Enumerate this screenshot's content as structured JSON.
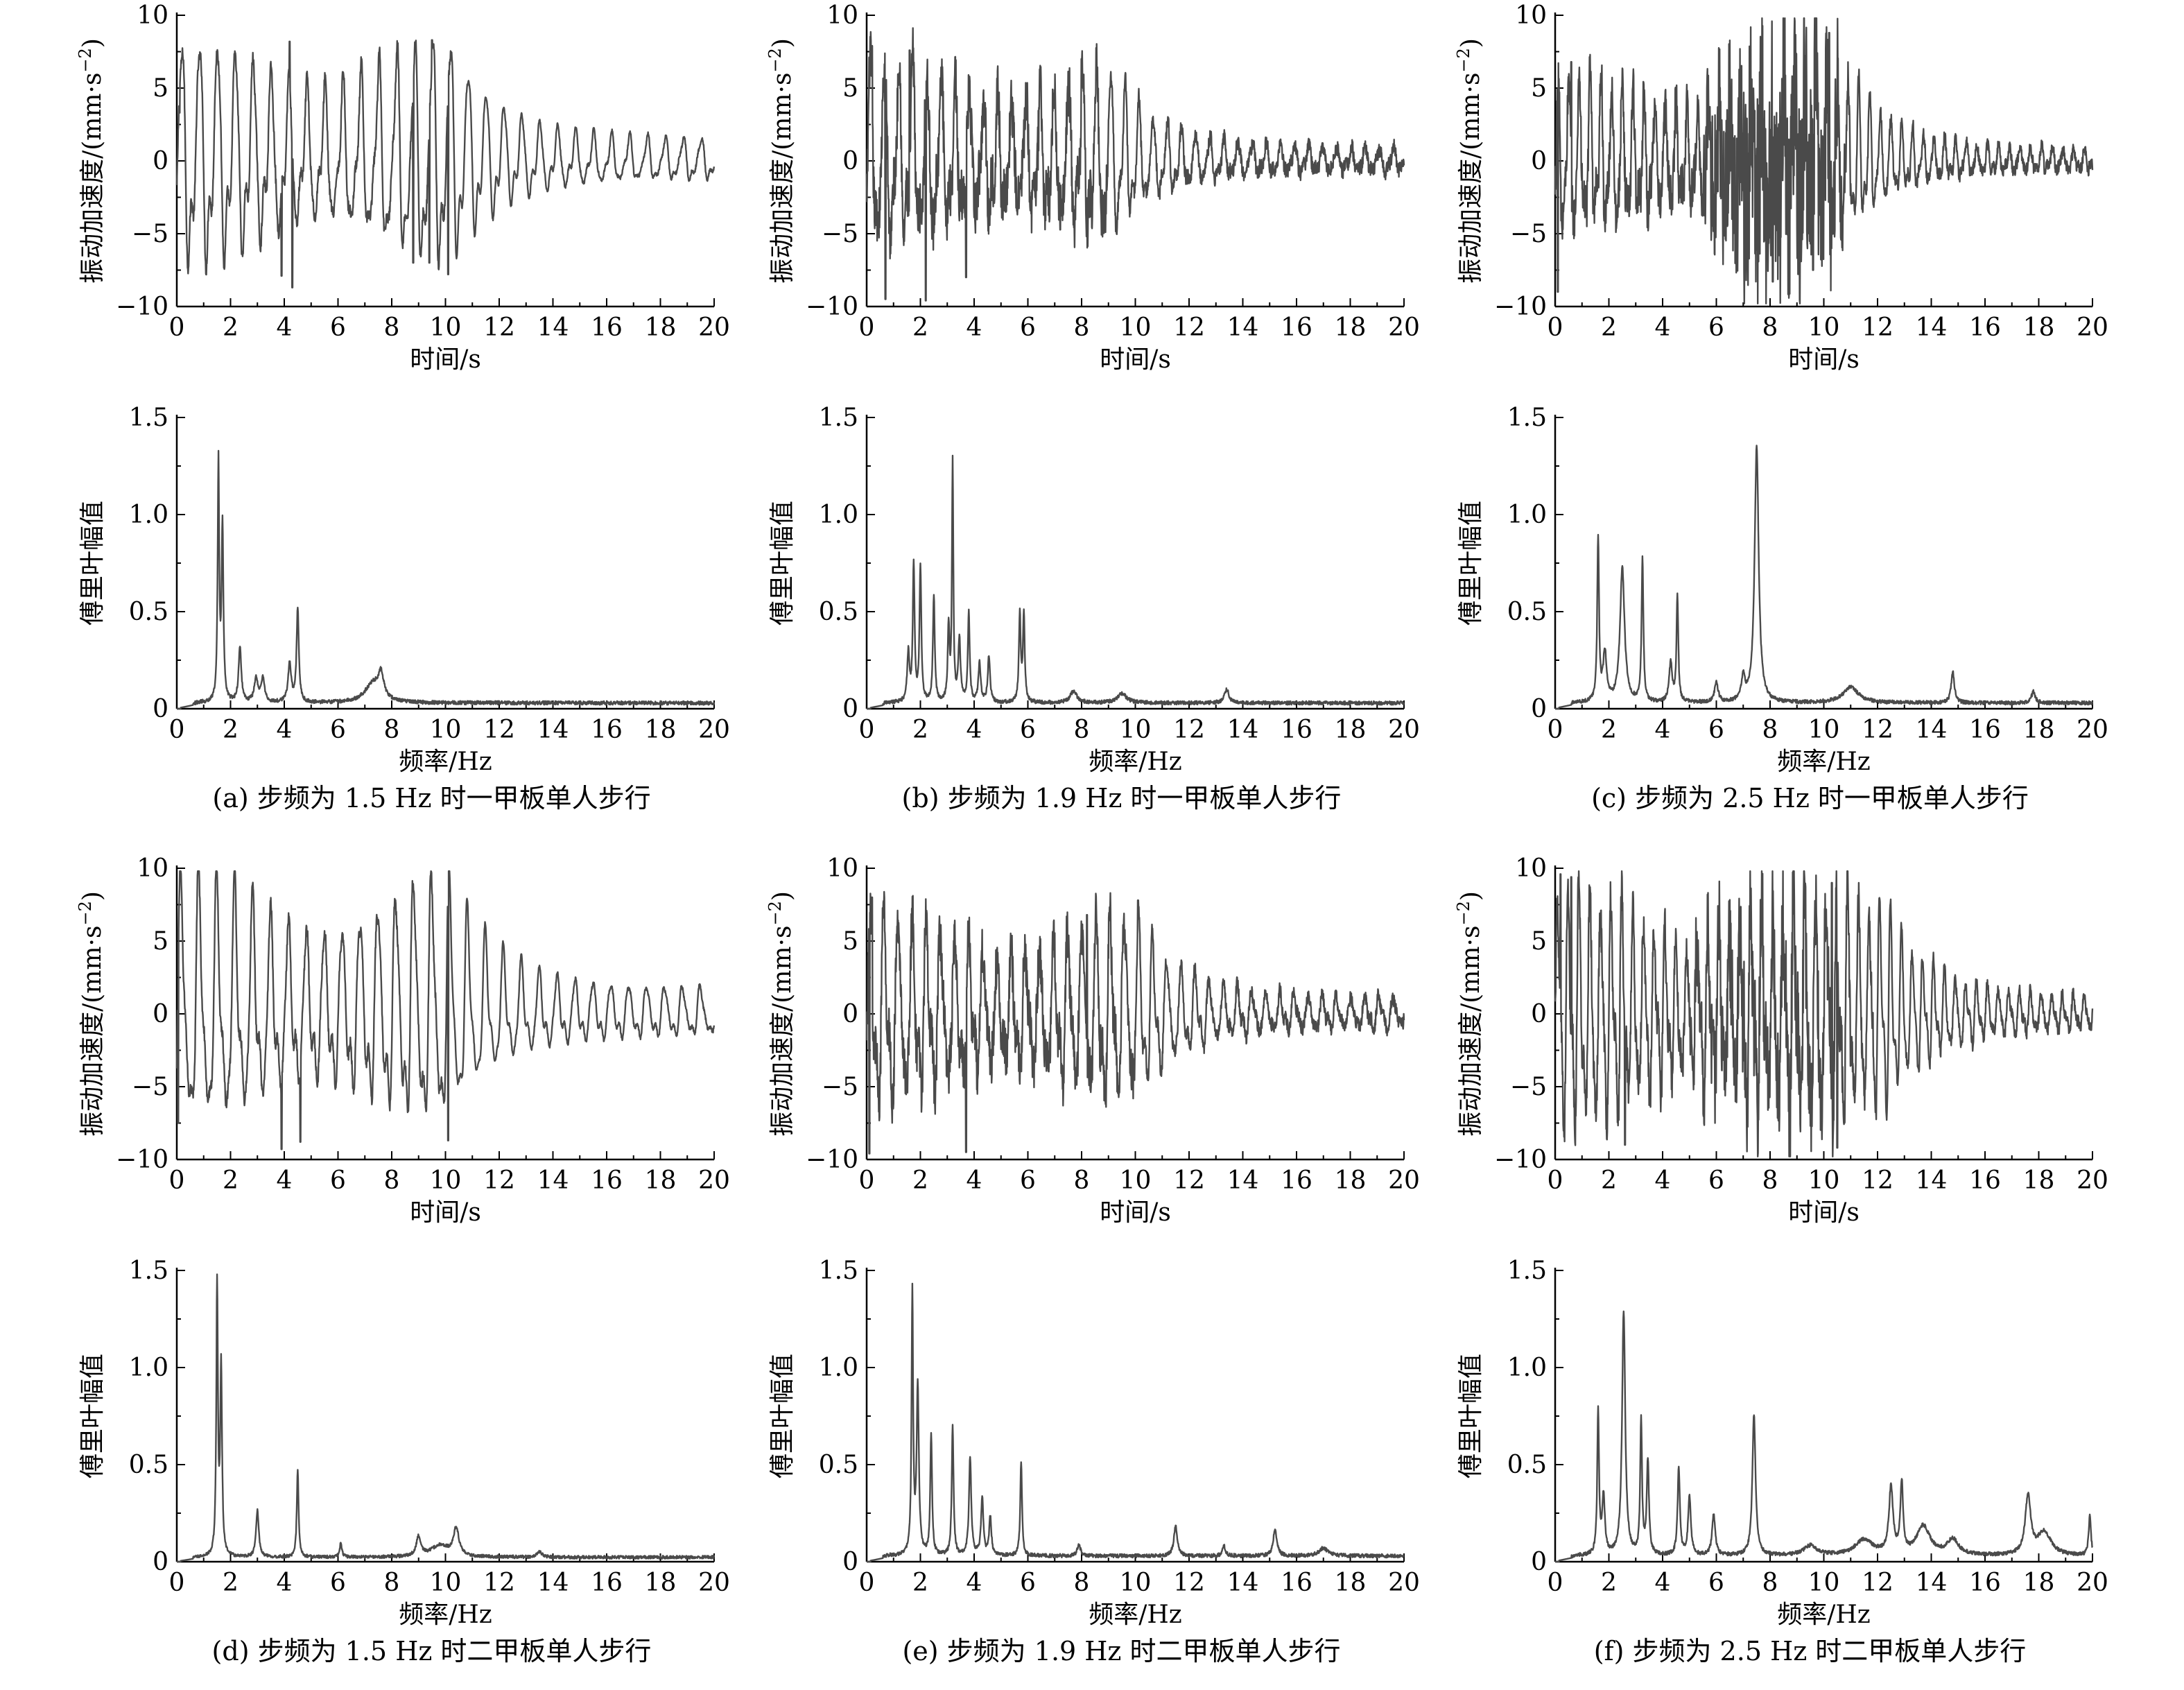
{
  "chart_data": [
    {
      "id": "a-time",
      "type": "line",
      "kind": "time",
      "caption": "",
      "xlabel": "时间/s",
      "ylabel": "振动加速度/(mm·s⁻²)",
      "xlim": [
        0,
        20
      ],
      "ylim": [
        -10,
        10
      ],
      "xticks": [
        0,
        2,
        4,
        6,
        8,
        10,
        12,
        14,
        16,
        18,
        20
      ],
      "yticks": [
        -10,
        -5,
        0,
        5,
        10
      ],
      "ytick_labels": [
        "−10",
        "−5",
        "0",
        "5",
        "10"
      ],
      "series": [
        {
          "name": "acc",
          "signal": {
            "freq": 1.5,
            "amp": 6.5,
            "decay_start": 10.2,
            "end_amp": 1.2,
            "noise": 0.4,
            "burst": [],
            "spikes": [
              [
                0.1,
                3.3
              ],
              [
                3.9,
                -7.9
              ],
              [
                4.3,
                -8.7
              ],
              [
                4.2,
                8.2
              ],
              [
                9.5,
                8.3
              ],
              [
                10.1,
                8.5
              ],
              [
                8.8,
                -7.0
              ],
              [
                9.4,
                -7.0
              ],
              [
                10.1,
                -7.8
              ]
            ]
          }
        }
      ]
    },
    {
      "id": "b-time",
      "type": "line",
      "kind": "time",
      "caption": "",
      "xlabel": "时间/s",
      "ylabel": "振动加速度/(mm·s⁻²)",
      "xlim": [
        0,
        20
      ],
      "ylim": [
        -10,
        10
      ],
      "xticks": [
        0,
        2,
        4,
        6,
        8,
        10,
        12,
        14,
        16,
        18,
        20
      ],
      "yticks": [
        -10,
        -5,
        0,
        5,
        10
      ],
      "ytick_labels": [
        "−10",
        "−5",
        "0",
        "5",
        "10"
      ],
      "series": [
        {
          "name": "acc",
          "signal": {
            "freq": 1.9,
            "amp": 5.2,
            "decay_start": 9.0,
            "end_amp": 0.7,
            "noise": 1.8,
            "burst": [],
            "spikes": [
              [
                0.2,
                7.9
              ],
              [
                0.7,
                -9.5
              ],
              [
                2.2,
                -9.6
              ],
              [
                1.6,
                7.6
              ],
              [
                3.7,
                -8.0
              ],
              [
                8.0,
                7.0
              ]
            ]
          }
        }
      ]
    },
    {
      "id": "c-time",
      "type": "line",
      "kind": "time",
      "caption": "",
      "xlabel": "时间/s",
      "ylabel": "振动加速度/(mm·s⁻²)",
      "xlim": [
        0,
        20
      ],
      "ylim": [
        -10,
        10
      ],
      "xticks": [
        0,
        2,
        4,
        6,
        8,
        10,
        12,
        14,
        16,
        18,
        20
      ],
      "yticks": [
        -10,
        -5,
        0,
        5,
        10
      ],
      "ytick_labels": [
        "−10",
        "−5",
        "0",
        "5",
        "10"
      ],
      "series": [
        {
          "name": "acc",
          "signal": {
            "freq": 2.5,
            "amp": 4.6,
            "decay_start": 11.0,
            "end_amp": 0.6,
            "noise": 1.5,
            "burst": [
              5.5,
              10.8,
              7.4,
              9.0
            ],
            "spikes": [
              [
                0.1,
                -9.0
              ],
              [
                0.6,
                6.8
              ],
              [
                10.2,
                8.8
              ],
              [
                8.1,
                -8.3
              ],
              [
                9.6,
                -7.5
              ]
            ]
          }
        }
      ]
    },
    {
      "id": "a-spec",
      "type": "line",
      "kind": "spectrum",
      "caption": "(a) 步频为 1.5 Hz 时一甲板单人步行",
      "xlabel": "频率/Hz",
      "ylabel": "傅里叶幅值",
      "xlim": [
        0,
        20
      ],
      "ylim": [
        0,
        1.5
      ],
      "xticks": [
        0,
        2,
        4,
        6,
        8,
        10,
        12,
        14,
        16,
        18,
        20
      ],
      "yticks": [
        0,
        0.5,
        1.0,
        1.5
      ],
      "ytick_labels": [
        "0",
        "0.5",
        "1.0",
        "1.5"
      ],
      "series": [
        {
          "name": "fft",
          "peaks": [
            [
              1.55,
              1.23,
              0.035
            ],
            [
              1.7,
              0.9,
              0.04
            ],
            [
              2.35,
              0.28,
              0.06
            ],
            [
              2.95,
              0.12,
              0.08
            ],
            [
              3.2,
              0.12,
              0.08
            ],
            [
              4.2,
              0.2,
              0.07
            ],
            [
              4.5,
              0.48,
              0.05
            ],
            [
              7.3,
              0.1,
              0.35
            ],
            [
              7.6,
              0.12,
              0.12
            ]
          ],
          "baseline": 0.02,
          "noise": 0.012
        }
      ]
    },
    {
      "id": "b-spec",
      "type": "line",
      "kind": "spectrum",
      "caption": "(b) 步频为 1.9 Hz 时一甲板单人步行",
      "xlabel": "频率/Hz",
      "ylabel": "傅里叶幅值",
      "xlim": [
        0,
        20
      ],
      "ylim": [
        0,
        1.5
      ],
      "xticks": [
        0,
        2,
        4,
        6,
        8,
        10,
        12,
        14,
        16,
        18,
        20
      ],
      "yticks": [
        0,
        0.5,
        1.0,
        1.5
      ],
      "ytick_labels": [
        "0",
        "0.5",
        "1.0",
        "1.5"
      ],
      "series": [
        {
          "name": "fft",
          "peaks": [
            [
              1.75,
              0.71,
              0.04
            ],
            [
              2.0,
              0.69,
              0.04
            ],
            [
              1.55,
              0.25,
              0.05
            ],
            [
              2.5,
              0.55,
              0.04
            ],
            [
              3.2,
              1.23,
              0.03
            ],
            [
              3.05,
              0.38,
              0.04
            ],
            [
              3.45,
              0.32,
              0.05
            ],
            [
              3.8,
              0.47,
              0.04
            ],
            [
              4.2,
              0.2,
              0.05
            ],
            [
              4.55,
              0.24,
              0.05
            ],
            [
              5.7,
              0.45,
              0.04
            ],
            [
              5.85,
              0.45,
              0.04
            ],
            [
              7.7,
              0.06,
              0.15
            ],
            [
              9.5,
              0.05,
              0.2
            ],
            [
              13.4,
              0.07,
              0.1
            ]
          ],
          "baseline": 0.02,
          "noise": 0.012
        }
      ]
    },
    {
      "id": "c-spec",
      "type": "line",
      "kind": "spectrum",
      "caption": "(c) 步频为 2.5 Hz 时一甲板单人步行",
      "xlabel": "频率/Hz",
      "ylabel": "傅里叶幅值",
      "xlim": [
        0,
        20
      ],
      "ylim": [
        0,
        1.5
      ],
      "xticks": [
        0,
        2,
        4,
        6,
        8,
        10,
        12,
        14,
        16,
        18,
        20
      ],
      "yticks": [
        0,
        0.5,
        1.0,
        1.5
      ],
      "ytick_labels": [
        "0",
        "0.5",
        "1.0",
        "1.5"
      ],
      "series": [
        {
          "name": "fft",
          "peaks": [
            [
              1.6,
              0.84,
              0.04
            ],
            [
              1.85,
              0.25,
              0.08
            ],
            [
              2.5,
              0.69,
              0.1
            ],
            [
              3.25,
              0.75,
              0.04
            ],
            [
              4.3,
              0.2,
              0.07
            ],
            [
              4.55,
              0.54,
              0.04
            ],
            [
              6.0,
              0.1,
              0.08
            ],
            [
              7.0,
              0.12,
              0.08
            ],
            [
              7.5,
              1.32,
              0.09
            ],
            [
              11.0,
              0.08,
              0.35
            ],
            [
              14.8,
              0.16,
              0.07
            ],
            [
              17.8,
              0.06,
              0.08
            ]
          ],
          "baseline": 0.02,
          "noise": 0.012
        }
      ]
    },
    {
      "id": "d-time",
      "type": "line",
      "kind": "time",
      "caption": "",
      "xlabel": "时间/s",
      "ylabel": "振动加速度/(mm·s⁻²)",
      "xlim": [
        0,
        20
      ],
      "ylim": [
        -10,
        10
      ],
      "xticks": [
        0,
        2,
        4,
        6,
        8,
        10,
        12,
        14,
        16,
        18,
        20
      ],
      "yticks": [
        -10,
        -5,
        0,
        5,
        10
      ],
      "ytick_labels": [
        "−10",
        "−5",
        "0",
        "5",
        "10"
      ],
      "series": [
        {
          "name": "acc",
          "signal": {
            "freq": 1.5,
            "amp": 7.2,
            "decay_start": 10.1,
            "end_amp": 1.4,
            "noise": 0.4,
            "burst": [],
            "spikes": [
              [
                0.05,
                -7.5
              ],
              [
                3.9,
                -9.3
              ],
              [
                10.1,
                9.2
              ],
              [
                10.1,
                -8.7
              ],
              [
                4.6,
                -8.8
              ]
            ]
          }
        }
      ]
    },
    {
      "id": "e-time",
      "type": "line",
      "kind": "time",
      "caption": "",
      "xlabel": "时间/s",
      "ylabel": "振动加速度/(mm·s⁻²)",
      "xlim": [
        0,
        20
      ],
      "ylim": [
        -10,
        10
      ],
      "xticks": [
        0,
        2,
        4,
        6,
        8,
        10,
        12,
        14,
        16,
        18,
        20
      ],
      "yticks": [
        -10,
        -5,
        0,
        5,
        10
      ],
      "ytick_labels": [
        "−10",
        "−5",
        "0",
        "5",
        "10"
      ],
      "series": [
        {
          "name": "acc",
          "signal": {
            "freq": 1.9,
            "amp": 5.4,
            "decay_start": 10.0,
            "end_amp": 0.9,
            "noise": 1.6,
            "burst": [],
            "spikes": [
              [
                0.1,
                -9.6
              ],
              [
                0.2,
                8.0
              ],
              [
                3.7,
                -9.5
              ],
              [
                10.1,
                7.8
              ],
              [
                8.2,
                6.8
              ]
            ]
          }
        }
      ]
    },
    {
      "id": "f-time",
      "type": "line",
      "kind": "time",
      "caption": "",
      "xlabel": "时间/s",
      "ylabel": "振动加速度/(mm·s⁻²)",
      "xlim": [
        0,
        20
      ],
      "ylim": [
        -10,
        10
      ],
      "xticks": [
        0,
        2,
        4,
        6,
        8,
        10,
        12,
        14,
        16,
        18,
        20
      ],
      "yticks": [
        -10,
        -5,
        0,
        5,
        10
      ],
      "ytick_labels": [
        "−10",
        "−5",
        "0",
        "5",
        "10"
      ],
      "series": [
        {
          "name": "acc",
          "signal": {
            "freq": 2.5,
            "amp": 6.8,
            "decay_start": 12.0,
            "end_amp": 0.9,
            "noise": 1.3,
            "burst": [
              5.0,
              11.0,
              3.5,
              1.2
            ],
            "spikes": [
              [
                0.2,
                9.6
              ],
              [
                0.6,
                9.4
              ],
              [
                2.6,
                -9.0
              ],
              [
                10.3,
                9.0
              ],
              [
                10.5,
                -9.2
              ]
            ]
          }
        }
      ]
    },
    {
      "id": "d-spec",
      "type": "line",
      "kind": "spectrum",
      "caption": "(d) 步频为 1.5 Hz 时二甲板单人步行",
      "xlabel": "频率/Hz",
      "ylabel": "傅里叶幅值",
      "xlim": [
        0,
        20
      ],
      "ylim": [
        0,
        1.5
      ],
      "xticks": [
        0,
        2,
        4,
        6,
        8,
        10,
        12,
        14,
        16,
        18,
        20
      ],
      "yticks": [
        0,
        0.5,
        1.0,
        1.5
      ],
      "ytick_labels": [
        "0",
        "0.5",
        "1.0",
        "1.5"
      ],
      "series": [
        {
          "name": "fft",
          "peaks": [
            [
              1.5,
              1.41,
              0.035
            ],
            [
              1.65,
              0.97,
              0.04
            ],
            [
              3.0,
              0.24,
              0.06
            ],
            [
              4.5,
              0.45,
              0.04
            ],
            [
              6.1,
              0.07,
              0.05
            ],
            [
              9.0,
              0.1,
              0.1
            ],
            [
              10.4,
              0.14,
              0.12
            ],
            [
              9.8,
              0.06,
              0.4
            ],
            [
              13.5,
              0.03,
              0.1
            ]
          ],
          "baseline": 0.015,
          "noise": 0.01
        }
      ]
    },
    {
      "id": "e-spec",
      "type": "line",
      "kind": "spectrum",
      "caption": "(e) 步频为 1.9 Hz 时二甲板单人步行",
      "xlabel": "频率/Hz",
      "ylabel": "傅里叶幅值",
      "xlim": [
        0,
        20
      ],
      "ylim": [
        0,
        1.5
      ],
      "xticks": [
        0,
        2,
        4,
        6,
        8,
        10,
        12,
        14,
        16,
        18,
        20
      ],
      "yticks": [
        0,
        0.5,
        1.0,
        1.5
      ],
      "ytick_labels": [
        "0",
        "0.5",
        "1.0",
        "1.5"
      ],
      "series": [
        {
          "name": "fft",
          "peaks": [
            [
              1.7,
              1.34,
              0.035
            ],
            [
              1.9,
              0.86,
              0.05
            ],
            [
              2.4,
              0.62,
              0.04
            ],
            [
              3.2,
              0.66,
              0.04
            ],
            [
              3.85,
              0.51,
              0.05
            ],
            [
              4.3,
              0.3,
              0.05
            ],
            [
              4.6,
              0.2,
              0.05
            ],
            [
              5.75,
              0.48,
              0.04
            ],
            [
              7.9,
              0.06,
              0.07
            ],
            [
              11.5,
              0.15,
              0.08
            ],
            [
              15.2,
              0.14,
              0.08
            ],
            [
              13.3,
              0.05,
              0.07
            ],
            [
              17.0,
              0.04,
              0.2
            ]
          ],
          "baseline": 0.02,
          "noise": 0.012
        }
      ]
    },
    {
      "id": "f-spec",
      "type": "line",
      "kind": "spectrum",
      "caption": "(f) 步频为 2.5 Hz 时二甲板单人步行",
      "xlabel": "频率/Hz",
      "ylabel": "傅里叶幅值",
      "xlim": [
        0,
        20
      ],
      "ylim": [
        0,
        1.5
      ],
      "xticks": [
        0,
        2,
        4,
        6,
        8,
        10,
        12,
        14,
        16,
        18,
        20
      ],
      "yticks": [
        0,
        0.5,
        1.0,
        1.5
      ],
      "ytick_labels": [
        "0",
        "0.5",
        "1.0",
        "1.5"
      ],
      "series": [
        {
          "name": "fft",
          "peaks": [
            [
              1.6,
              0.73,
              0.04
            ],
            [
              1.8,
              0.3,
              0.06
            ],
            [
              2.55,
              1.26,
              0.07
            ],
            [
              3.2,
              0.69,
              0.04
            ],
            [
              3.45,
              0.48,
              0.05
            ],
            [
              4.6,
              0.45,
              0.05
            ],
            [
              5.0,
              0.3,
              0.06
            ],
            [
              5.9,
              0.21,
              0.07
            ],
            [
              7.4,
              0.73,
              0.07
            ],
            [
              9.5,
              0.05,
              0.3
            ],
            [
              11.5,
              0.08,
              0.4
            ],
            [
              12.5,
              0.34,
              0.09
            ],
            [
              12.9,
              0.36,
              0.06
            ],
            [
              13.7,
              0.15,
              0.3
            ],
            [
              14.8,
              0.08,
              0.25
            ],
            [
              17.6,
              0.3,
              0.12
            ],
            [
              18.2,
              0.12,
              0.3
            ],
            [
              19.9,
              0.2,
              0.05
            ]
          ],
          "baseline": 0.02,
          "noise": 0.012
        }
      ]
    }
  ]
}
